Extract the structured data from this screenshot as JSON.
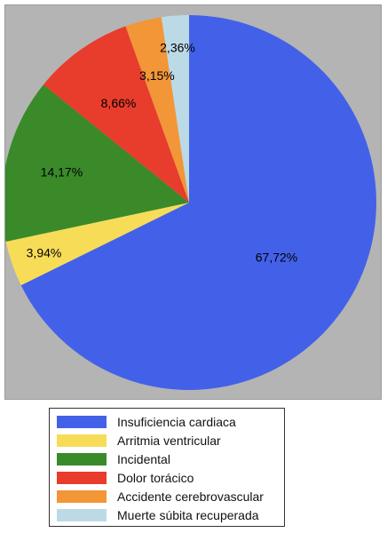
{
  "chart_data": {
    "type": "pie",
    "start_angle": "top",
    "direction": "clockwise",
    "slices": [
      {
        "label": "Insuficiencia cardiaca",
        "value": 67.72,
        "value_label": "67,72%",
        "color": "#4361e8"
      },
      {
        "label": "Arritmia ventricular",
        "value": 3.94,
        "value_label": "3,94%",
        "color": "#f7dc58"
      },
      {
        "label": "Incidental",
        "value": 14.17,
        "value_label": "14,17%",
        "color": "#3a8a2a"
      },
      {
        "label": "Dolor torácico",
        "value": 8.66,
        "value_label": "8,66%",
        "color": "#e83c2c"
      },
      {
        "label": "Accidente cerebrovascular",
        "value": 3.15,
        "value_label": "3,15%",
        "color": "#f29638"
      },
      {
        "label": "Muerte súbita recuperada",
        "value": 2.36,
        "value_label": "2,36%",
        "color": "#bcdae6"
      }
    ],
    "legend_position": "bottom"
  }
}
